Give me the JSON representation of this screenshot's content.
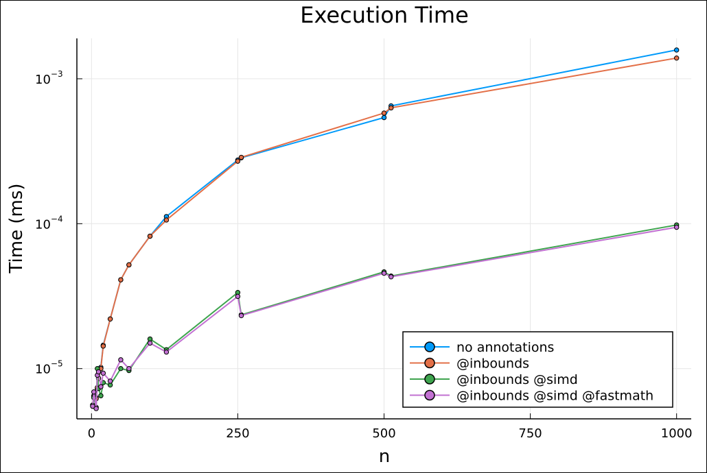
{
  "chart_data": {
    "type": "line",
    "title": "Execution Time",
    "xlabel": "n",
    "ylabel": "Time (ms)",
    "xlim": [
      -25,
      1025
    ],
    "ylim": [
      4.5e-06,
      0.0019
    ],
    "yscale": "log10",
    "xticks": [
      0,
      250,
      500,
      750,
      1000
    ],
    "xtick_labels": [
      "0",
      "250",
      "500",
      "750",
      "1000"
    ],
    "yticks": [
      {
        "value": 1e-05,
        "base": "10",
        "exp": "−5"
      },
      {
        "value": 0.0001,
        "base": "10",
        "exp": "−4"
      },
      {
        "value": 0.001,
        "base": "10",
        "exp": "−3"
      }
    ],
    "grid": true,
    "legend_position": "bottom-right",
    "x": [
      2,
      4,
      8,
      10,
      12,
      16,
      20,
      32,
      50,
      64,
      100,
      128,
      250,
      256,
      500,
      512,
      1000
    ],
    "series": [
      {
        "name": "no annotations",
        "color": "#009AFA",
        "values": [
          5.5e-06,
          6.5e-06,
          6.3e-06,
          7.3e-06,
          8.5e-06,
          1.02e-05,
          1.45e-05,
          2.2e-05,
          4.1e-05,
          5.2e-05,
          8.2e-05,
          0.000112,
          0.000275,
          0.000285,
          0.00054,
          0.00065,
          0.00158
        ]
      },
      {
        "name": "@inbounds",
        "color": "#E36F47",
        "values": [
          5.6e-06,
          6.4e-06,
          6.2e-06,
          7.4e-06,
          8.6e-06,
          1e-05,
          1.43e-05,
          2.2e-05,
          4.1e-05,
          5.2e-05,
          8.2e-05,
          0.000106,
          0.00027,
          0.000287,
          0.00058,
          0.00063,
          0.00139
        ]
      },
      {
        "name": "@inbounds @simd",
        "color": "#3EA44E",
        "values": [
          5.6e-06,
          6.3e-06,
          5.4e-06,
          1e-05,
          7.3e-06,
          6.5e-06,
          8e-06,
          7.7e-06,
          1e-05,
          9.7e-06,
          1.6e-05,
          1.35e-05,
          3.35e-05,
          2.35e-05,
          4.65e-05,
          4.35e-05,
          9.8e-05
        ]
      },
      {
        "name": "@inbounds @simd @fastmath",
        "color": "#C271D2",
        "values": [
          5.5e-06,
          6.9e-06,
          5.3e-06,
          9e-06,
          9.5e-06,
          7.5e-06,
          9.3e-06,
          8.2e-06,
          1.15e-05,
          1e-05,
          1.5e-05,
          1.3e-05,
          3.15e-05,
          2.32e-05,
          4.55e-05,
          4.3e-05,
          9.45e-05
        ]
      }
    ]
  }
}
